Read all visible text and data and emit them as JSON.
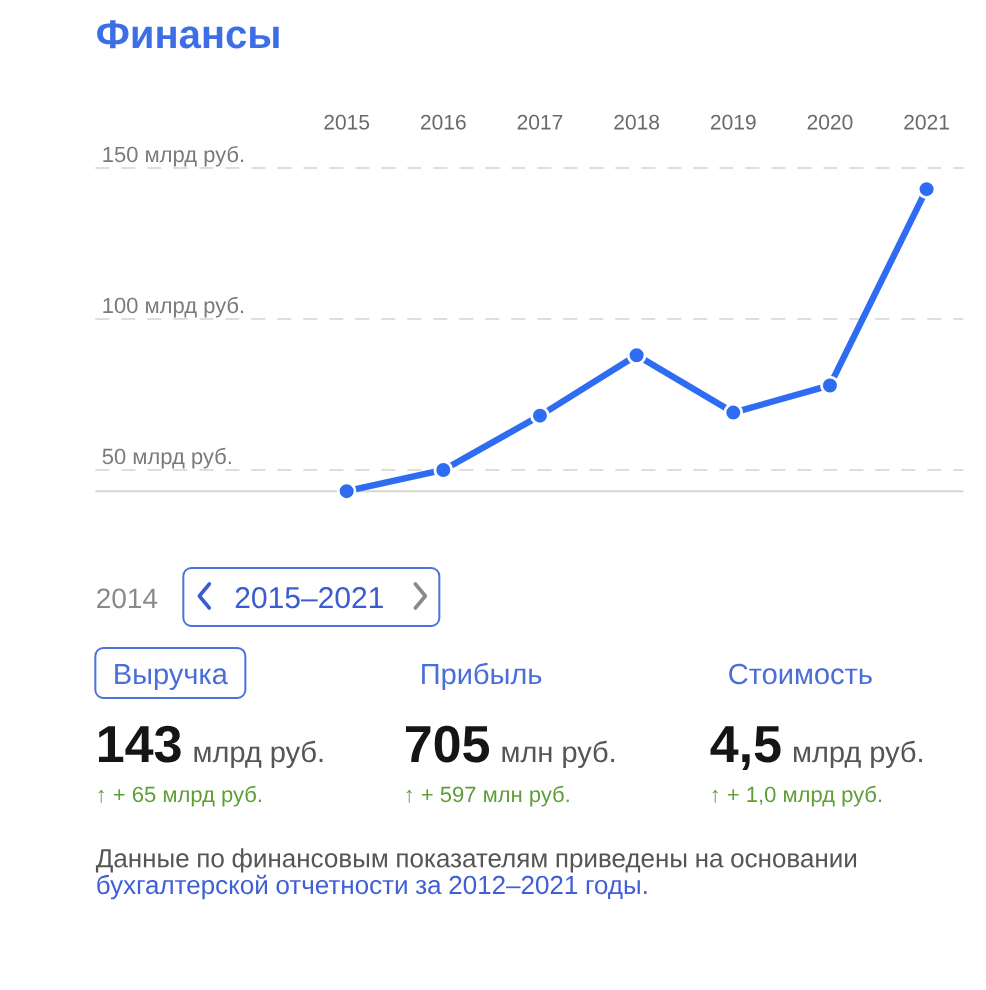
{
  "chart_data": {
    "type": "line",
    "title": "Финансы",
    "categories": [
      "2015",
      "2016",
      "2017",
      "2018",
      "2019",
      "2020",
      "2021"
    ],
    "values": [
      43,
      50,
      68,
      88,
      69,
      78,
      143
    ],
    "color": "#2e6cf2",
    "marker": "circle",
    "line_style": "solid",
    "grid": "y",
    "ylim": [
      43,
      150
    ],
    "yticks": [
      {
        "value": 50,
        "label": "50 млрд руб."
      },
      {
        "value": 100,
        "label": "100 млрд руб."
      },
      {
        "value": 150,
        "label": "150 млрд руб."
      }
    ],
    "annotations": [
      "2014",
      "2015–2021",
      "Выручка",
      "Прибыль",
      "Стоимость",
      "143",
      "млрд руб.",
      "705",
      "млн руб.",
      "4,5",
      "млрд руб.",
      "↑ + 65 млрд руб.",
      "↑ + 597 млн руб.",
      "↑ + 1,0 млрд руб.",
      "Данные по финансовым показателям приведены на основании",
      "бухгалтерской отчетности за 2012–2021 годы."
    ]
  }
}
